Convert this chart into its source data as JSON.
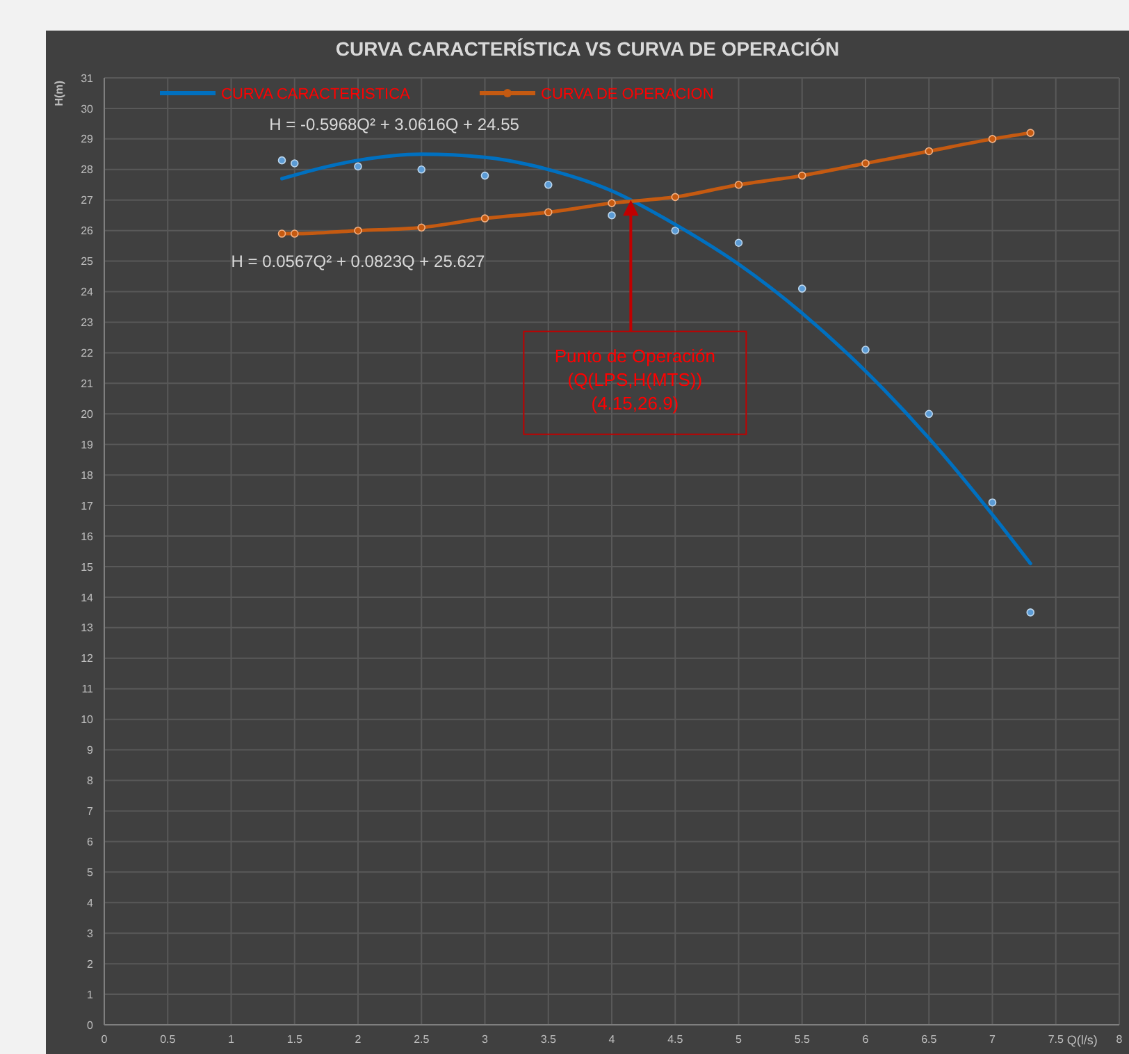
{
  "chart_data": {
    "type": "line",
    "title": "CURVA CARACTERÍSTICA VS CURVA DE OPERACIÓN",
    "xlabel": "Q(l/s)",
    "ylabel": "H(m)",
    "x": [
      1.4,
      1.5,
      2,
      2.5,
      3,
      3.5,
      4,
      4.5,
      5,
      5.5,
      6,
      6.5,
      7,
      7.3
    ],
    "series": [
      {
        "type": "scatter",
        "color": "#5b9bd5",
        "marker": "circle",
        "values": [
          28.3,
          28.2,
          28.1,
          28.0,
          27.8,
          27.5,
          26.5,
          26.0,
          25.6,
          24.1,
          22.1,
          20.0,
          17.1,
          13.5
        ]
      },
      {
        "name": "CURVA CARACTERISTICA",
        "color": "#0070c0",
        "marker": "none",
        "x": [
          1.4,
          2,
          2.5,
          3,
          3.5,
          4,
          4.5,
          5,
          5.5,
          6,
          6.5,
          7,
          7.3
        ],
        "values": [
          27.7,
          28.3,
          28.5,
          28.4,
          28.0,
          27.3,
          26.2,
          24.9,
          23.3,
          21.4,
          19.2,
          16.7,
          15.1
        ]
      },
      {
        "name": "CURVA DE OPERACION",
        "color": "#c55a11",
        "marker": "circle",
        "values": [
          25.9,
          25.9,
          26.0,
          26.1,
          26.4,
          26.6,
          26.9,
          27.1,
          27.5,
          27.8,
          28.2,
          28.6,
          29.0,
          29.2
        ]
      }
    ],
    "xlim": [
      0,
      8
    ],
    "xticks": [
      0,
      0.5,
      1,
      1.5,
      2,
      2.5,
      3,
      3.5,
      4,
      4.5,
      5,
      5.5,
      6,
      6.5,
      7,
      7.5,
      8
    ],
    "ylim": [
      0,
      31
    ],
    "yticks": [
      0,
      1,
      2,
      3,
      4,
      5,
      6,
      7,
      8,
      9,
      10,
      11,
      12,
      13,
      14,
      15,
      16,
      17,
      18,
      19,
      20,
      21,
      22,
      23,
      24,
      25,
      26,
      27,
      28,
      29,
      30,
      31
    ],
    "grid": true,
    "legend": "top left",
    "line_style": "solid",
    "annotations": [
      "H = -0.5968Q² + 3.0616Q + 24.55",
      "H = 0.0567Q² + 0.0823Q + 25.627",
      {
        "text": "Punto de Operación\n(Q(LPS,H(MTS))\n(4.15,26.9)",
        "x": 4.15,
        "y": 26.9
      }
    ]
  }
}
